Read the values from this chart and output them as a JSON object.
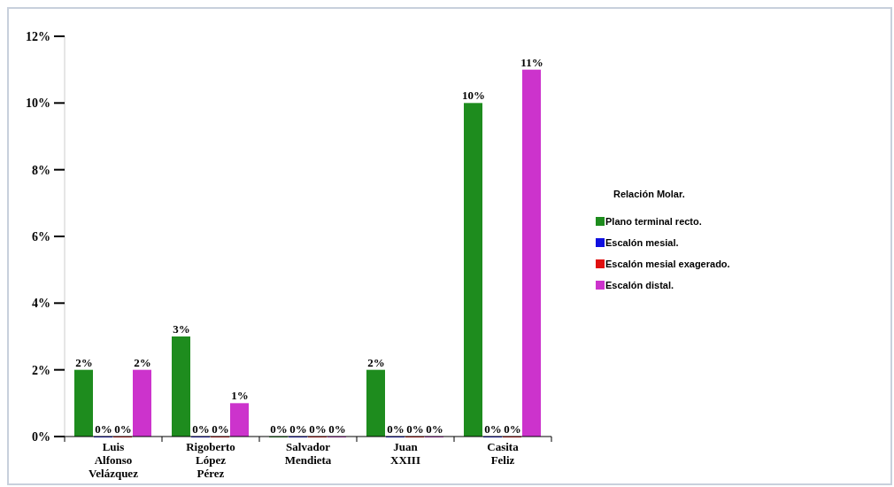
{
  "chart_data": {
    "type": "bar",
    "legend_title": "Relación Molar.",
    "legend": "right",
    "grid": false,
    "categories": [
      "Luis Alfonso Velázquez",
      "Rigoberto López Pérez",
      "Salvador Mendieta",
      "Juan XXIII",
      "Casita Feliz"
    ],
    "series": [
      {
        "name": "Plano terminal recto.",
        "color": "#1e8c1e",
        "values": [
          2,
          3,
          0,
          2,
          10
        ],
        "value_labels": [
          "2%",
          "3%",
          "0%",
          "2%",
          "10%"
        ]
      },
      {
        "name": "Escalón mesial.",
        "color": "#1010e0",
        "values": [
          0,
          0,
          0,
          0,
          0
        ],
        "value_labels": [
          "0%",
          "0%",
          "0%",
          "0%",
          "0%"
        ]
      },
      {
        "name": "Escalón mesial exagerado.",
        "color": "#e01010",
        "values": [
          0,
          0,
          0,
          0,
          0
        ],
        "value_labels": [
          "0%",
          "0%",
          "0%",
          "0%",
          "0%"
        ]
      },
      {
        "name": "Escalón distal.",
        "color": "#cc33cc",
        "values": [
          2,
          1,
          0,
          0,
          11
        ],
        "value_labels": [
          "2%",
          "1%",
          "0%",
          "0%",
          "11%"
        ]
      }
    ],
    "ylim": [
      0,
      12
    ],
    "yticks": [
      {
        "value": 0,
        "label": "0%"
      },
      {
        "value": 2,
        "label": "2%"
      },
      {
        "value": 4,
        "label": "4%"
      },
      {
        "value": 6,
        "label": "6%"
      },
      {
        "value": 8,
        "label": "8%"
      },
      {
        "value": 10,
        "label": "10%"
      },
      {
        "value": 12,
        "label": "12%"
      }
    ]
  }
}
